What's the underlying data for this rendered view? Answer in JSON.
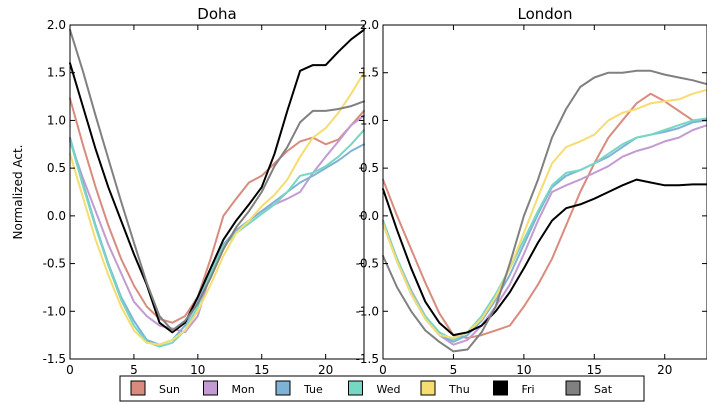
{
  "ylabel": "Normalized Act.",
  "colors": {
    "Sun": "#d98b7e",
    "Mon": "#c39bd3",
    "Tue": "#7fb3d5",
    "Wed": "#76d7c4",
    "Thu": "#f7dc6f",
    "Fri": "#000000",
    "Sat": "#808080"
  },
  "legend": [
    "Sun",
    "Mon",
    "Tue",
    "Wed",
    "Thu",
    "Fri",
    "Sat"
  ],
  "chart_data": [
    {
      "type": "line",
      "title": "Doha",
      "xlim": [
        0,
        23
      ],
      "ylim": [
        -1.5,
        2.0
      ],
      "xticks": [
        "0",
        "5",
        "10",
        "15",
        "20"
      ],
      "yticks": [
        "-1.5",
        "-1.0",
        "-0.5",
        "0.0",
        "0.5",
        "1.0",
        "1.5",
        "2.0"
      ],
      "x": [
        0,
        1,
        2,
        3,
        4,
        5,
        6,
        7,
        8,
        9,
        10,
        11,
        12,
        13,
        14,
        15,
        16,
        17,
        18,
        19,
        20,
        21,
        22,
        23
      ],
      "series": [
        {
          "name": "Sun",
          "values": [
            1.23,
            0.75,
            0.3,
            -0.1,
            -0.45,
            -0.73,
            -0.95,
            -1.08,
            -1.12,
            -1.05,
            -0.85,
            -0.45,
            0.0,
            0.18,
            0.35,
            0.42,
            0.55,
            0.68,
            0.78,
            0.82,
            0.75,
            0.8,
            0.95,
            1.1
          ]
        },
        {
          "name": "Mon",
          "values": [
            0.78,
            0.4,
            0.05,
            -0.3,
            -0.6,
            -0.9,
            -1.05,
            -1.15,
            -1.18,
            -1.22,
            -1.05,
            -0.6,
            -0.3,
            -0.15,
            -0.05,
            0.05,
            0.12,
            0.18,
            0.25,
            0.45,
            0.62,
            0.78,
            0.95,
            1.05
          ]
        },
        {
          "name": "Tue",
          "values": [
            0.82,
            0.35,
            -0.1,
            -0.5,
            -0.85,
            -1.1,
            -1.3,
            -1.35,
            -1.3,
            -1.15,
            -0.9,
            -0.55,
            -0.3,
            -0.15,
            -0.05,
            0.05,
            0.15,
            0.25,
            0.35,
            0.42,
            0.5,
            0.58,
            0.68,
            0.75
          ]
        },
        {
          "name": "Wed",
          "values": [
            0.8,
            0.32,
            -0.12,
            -0.52,
            -0.88,
            -1.15,
            -1.32,
            -1.37,
            -1.33,
            -1.2,
            -0.95,
            -0.6,
            -0.32,
            -0.18,
            -0.08,
            0.02,
            0.12,
            0.25,
            0.42,
            0.45,
            0.52,
            0.62,
            0.75,
            0.9
          ]
        },
        {
          "name": "Thu",
          "values": [
            0.65,
            0.2,
            -0.25,
            -0.62,
            -0.95,
            -1.2,
            -1.33,
            -1.35,
            -1.3,
            -1.2,
            -1.0,
            -0.72,
            -0.42,
            -0.18,
            -0.05,
            0.1,
            0.22,
            0.38,
            0.62,
            0.82,
            0.92,
            1.08,
            1.28,
            1.5
          ]
        },
        {
          "name": "Fri",
          "values": [
            1.6,
            1.15,
            0.7,
            0.3,
            -0.05,
            -0.4,
            -0.72,
            -1.12,
            -1.22,
            -1.12,
            -0.85,
            -0.55,
            -0.25,
            -0.05,
            0.12,
            0.3,
            0.65,
            1.1,
            1.52,
            1.58,
            1.58,
            1.72,
            1.85,
            1.95
          ]
        },
        {
          "name": "Sat",
          "values": [
            1.95,
            1.52,
            1.05,
            0.6,
            0.15,
            -0.28,
            -0.7,
            -1.05,
            -1.2,
            -1.1,
            -0.92,
            -0.65,
            -0.35,
            -0.12,
            0.05,
            0.25,
            0.52,
            0.72,
            0.98,
            1.1,
            1.1,
            1.12,
            1.15,
            1.2
          ]
        }
      ]
    },
    {
      "type": "line",
      "title": "London",
      "xlim": [
        0,
        23
      ],
      "ylim": [
        -1.5,
        2.0
      ],
      "xticks": [
        "0",
        "5",
        "10",
        "15",
        "20"
      ],
      "yticks": [
        "-1.5",
        "-1.0",
        "-0.5",
        "0.0",
        "0.5",
        "1.0",
        "1.5",
        "2.0"
      ],
      "x": [
        0,
        1,
        2,
        3,
        4,
        5,
        6,
        7,
        8,
        9,
        10,
        11,
        12,
        13,
        14,
        15,
        16,
        17,
        18,
        19,
        20,
        21,
        22,
        23
      ],
      "series": [
        {
          "name": "Sun",
          "values": [
            0.38,
            0.0,
            -0.35,
            -0.7,
            -1.02,
            -1.25,
            -1.28,
            -1.25,
            -1.2,
            -1.15,
            -0.95,
            -0.72,
            -0.45,
            -0.1,
            0.25,
            0.55,
            0.82,
            1.0,
            1.18,
            1.28,
            1.2,
            1.1,
            1.0,
            1.0
          ]
        },
        {
          "name": "Mon",
          "values": [
            -0.05,
            -0.45,
            -0.78,
            -1.05,
            -1.25,
            -1.35,
            -1.3,
            -1.15,
            -0.95,
            -0.72,
            -0.4,
            -0.05,
            0.25,
            0.32,
            0.38,
            0.45,
            0.52,
            0.62,
            0.68,
            0.72,
            0.78,
            0.82,
            0.9,
            0.95
          ]
        },
        {
          "name": "Tue",
          "values": [
            -0.08,
            -0.48,
            -0.82,
            -1.08,
            -1.25,
            -1.32,
            -1.25,
            -1.1,
            -0.88,
            -0.62,
            -0.3,
            0.02,
            0.3,
            0.42,
            0.48,
            0.55,
            0.62,
            0.72,
            0.82,
            0.85,
            0.88,
            0.92,
            0.98,
            1.0
          ]
        },
        {
          "name": "Wed",
          "values": [
            -0.05,
            -0.45,
            -0.8,
            -1.05,
            -1.22,
            -1.3,
            -1.22,
            -1.05,
            -0.82,
            -0.55,
            -0.25,
            0.05,
            0.32,
            0.45,
            0.48,
            0.55,
            0.65,
            0.75,
            0.82,
            0.85,
            0.9,
            0.95,
            1.0,
            1.02
          ]
        },
        {
          "name": "Thu",
          "values": [
            -0.08,
            -0.48,
            -0.82,
            -1.08,
            -1.25,
            -1.28,
            -1.22,
            -1.08,
            -0.85,
            -0.55,
            -0.18,
            0.2,
            0.55,
            0.72,
            0.78,
            0.85,
            1.0,
            1.08,
            1.12,
            1.18,
            1.2,
            1.22,
            1.28,
            1.32
          ]
        },
        {
          "name": "Fri",
          "values": [
            0.28,
            -0.15,
            -0.55,
            -0.9,
            -1.12,
            -1.25,
            -1.22,
            -1.15,
            -1.0,
            -0.8,
            -0.55,
            -0.28,
            -0.05,
            0.08,
            0.12,
            0.18,
            0.25,
            0.32,
            0.38,
            0.35,
            0.32,
            0.32,
            0.33,
            0.33
          ]
        },
        {
          "name": "Sat",
          "values": [
            -0.42,
            -0.75,
            -1.0,
            -1.2,
            -1.32,
            -1.42,
            -1.4,
            -1.22,
            -0.95,
            -0.5,
            0.0,
            0.38,
            0.82,
            1.12,
            1.35,
            1.45,
            1.5,
            1.5,
            1.52,
            1.52,
            1.48,
            1.45,
            1.42,
            1.38
          ]
        }
      ]
    }
  ]
}
